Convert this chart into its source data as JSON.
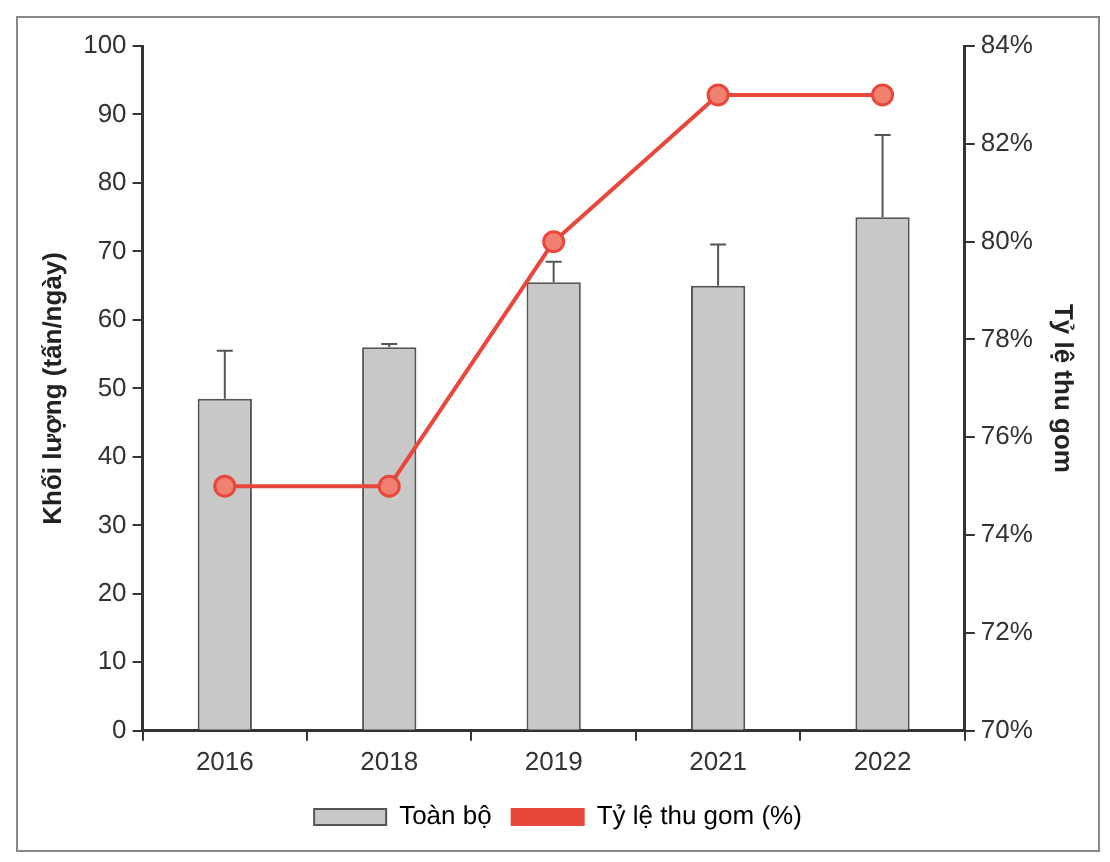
{
  "chart_data": {
    "type": "bar",
    "ylabel": "Khối lượng (tấn/ngày)",
    "y2label": "Tỷ lệ thu gom",
    "categories": [
      "2016",
      "2018",
      "2019",
      "2021",
      "2022"
    ],
    "series": [
      {
        "name": "Toàn bộ",
        "color": "#c8c8c8",
        "values": [
          48.5,
          56,
          65.5,
          65,
          75
        ],
        "errors": [
          [
            48.5,
            55.5
          ],
          [
            56,
            56.5
          ],
          [
            65.5,
            68.5
          ],
          [
            65,
            71
          ],
          [
            75,
            87
          ]
        ]
      },
      {
        "name": "Tỷ lệ thu gom (%)",
        "type": "line",
        "color": "#e8473c",
        "axis": "y2",
        "marker": "circle",
        "values": [
          75,
          75,
          80,
          83,
          83
        ]
      }
    ],
    "ylim": [
      0,
      100
    ],
    "yticks": [
      0,
      10,
      20,
      30,
      40,
      50,
      60,
      70,
      80,
      90,
      100
    ],
    "y2lim": [
      70,
      84
    ],
    "y2ticks": [
      {
        "value": 70,
        "label": "70%"
      },
      {
        "value": 72,
        "label": "72%"
      },
      {
        "value": 74,
        "label": "74%"
      },
      {
        "value": 76,
        "label": "76%"
      },
      {
        "value": 78,
        "label": "78%"
      },
      {
        "value": 80,
        "label": "80%"
      },
      {
        "value": 82,
        "label": "82%"
      },
      {
        "value": 84,
        "label": "84%"
      }
    ],
    "legend": "bottom"
  }
}
